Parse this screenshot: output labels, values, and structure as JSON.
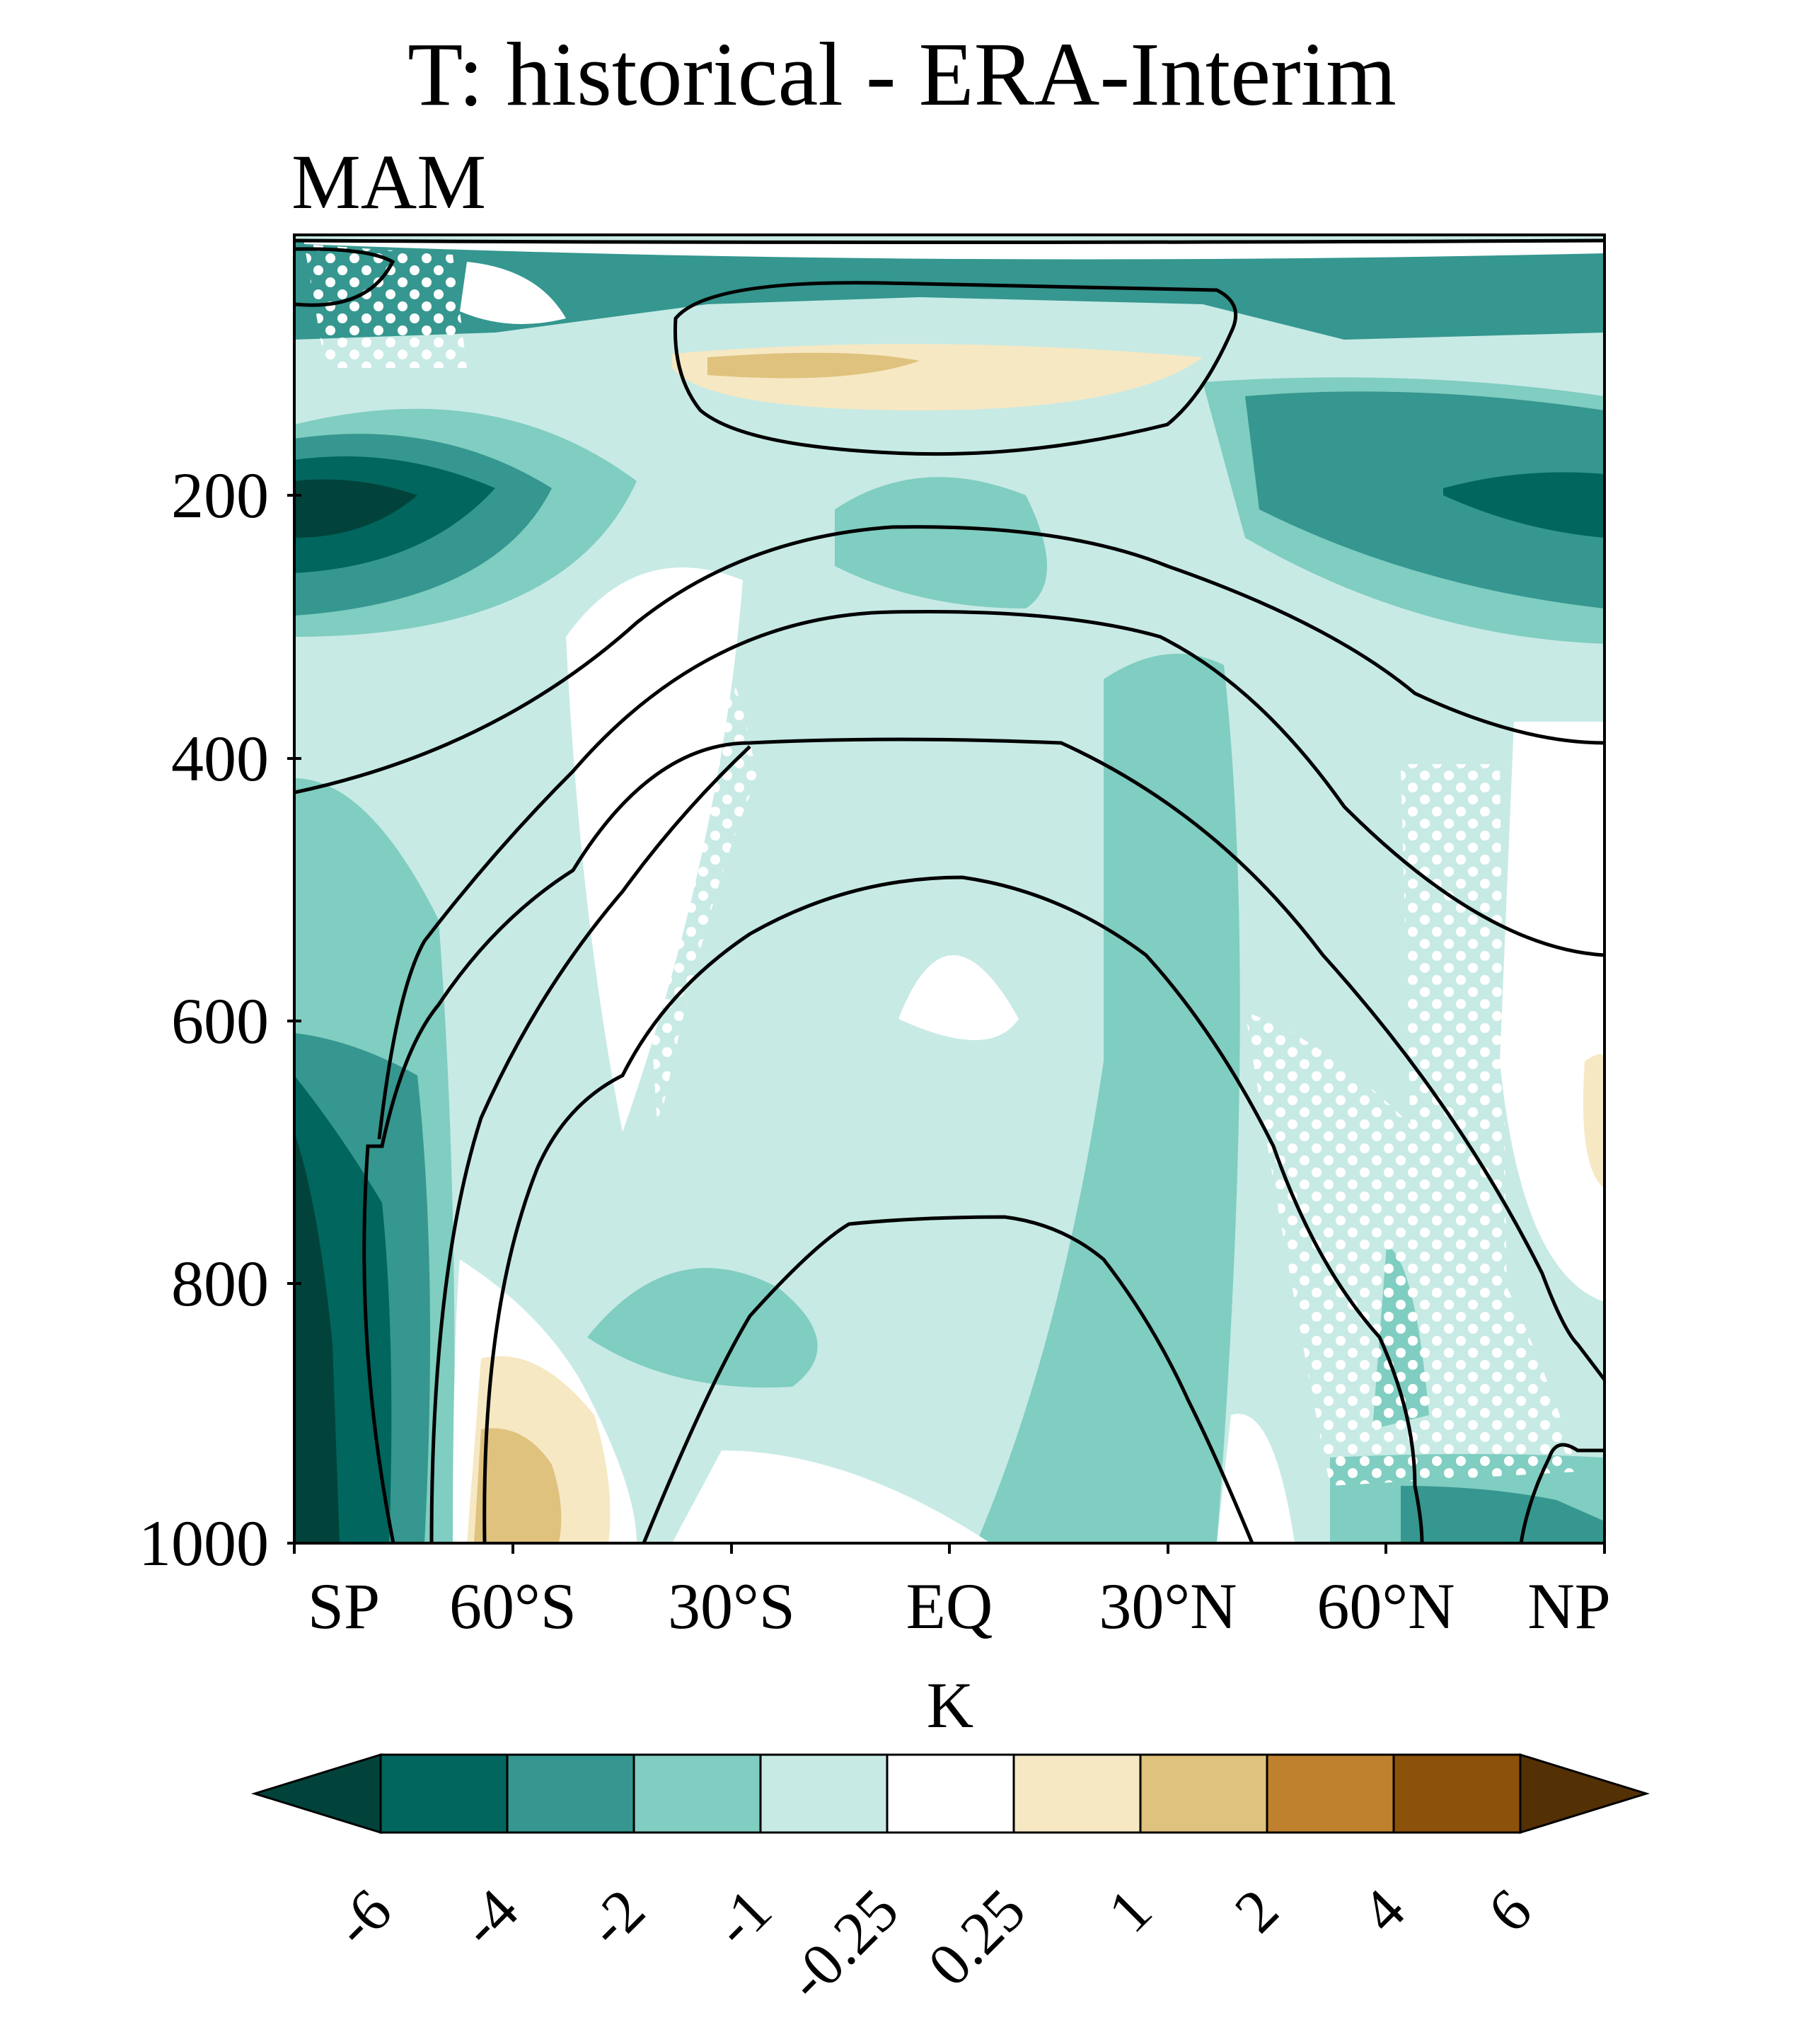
{
  "title": "T: historical - ERA-Interim",
  "subtitle": "MAM",
  "chart_data": {
    "type": "heatmap",
    "title": "T: historical - ERA-Interim",
    "season": "MAM",
    "xlabel": "",
    "ylabel": "",
    "x_ticks": [
      "SP",
      "60°S",
      "30°S",
      "EQ",
      "30°N",
      "60°N",
      "NP"
    ],
    "x_tick_values": [
      -90,
      -60,
      -30,
      0,
      30,
      60,
      90
    ],
    "y_ticks": [
      "200",
      "400",
      "600",
      "800",
      "1000"
    ],
    "y_tick_values": [
      200,
      400,
      600,
      800,
      1000
    ],
    "xlim": [
      -90,
      90
    ],
    "ylim": [
      1000,
      0
    ],
    "colorbar": {
      "label": "K",
      "levels": [
        "-6",
        "-4",
        "-2",
        "-1",
        "-0.25",
        "0.25",
        "1",
        "2",
        "4",
        "6"
      ],
      "colors": [
        "#01433a",
        "#01665e",
        "#35978f",
        "#80cdc1",
        "#c7eae5",
        "#ffffff",
        "#f6e8c3",
        "#dfc27d",
        "#bf812d",
        "#8c510a",
        "#543005"
      ]
    },
    "contour_color": "#000000",
    "stippling": "white dots"
  }
}
